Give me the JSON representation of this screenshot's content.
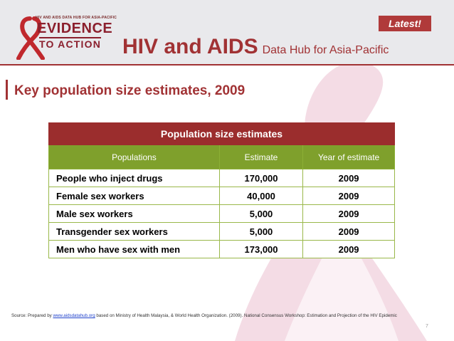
{
  "header": {
    "logo": {
      "tagline": "HIV AND AIDS DATA HUB FOR ASIA-PACIFIC",
      "line1": "EVIDENCE",
      "line2": "TO ACTION"
    },
    "badge": "Latest!",
    "title_main": "HIV and AIDS",
    "title_sub": "Data Hub for Asia-Pacific"
  },
  "page_title": "Key population size estimates, 2009",
  "table": {
    "caption": "Population size estimates",
    "columns": [
      "Populations",
      "Estimate",
      "Year of estimate"
    ],
    "rows": [
      [
        "People who inject drugs",
        "170,000",
        "2009"
      ],
      [
        "Female sex workers",
        "40,000",
        "2009"
      ],
      [
        "Male sex workers",
        "5,000",
        "2009"
      ],
      [
        "Transgender sex workers",
        "5,000",
        "2009"
      ],
      [
        "Men who have sex with men",
        "173,000",
        "2009"
      ]
    ]
  },
  "source": {
    "prefix": "Source: Prepared by ",
    "link": "www.aidsdatahub.org",
    "rest": " based on  Ministry of Health Malaysia, & World Health Organization. (2009). National Consensus Workshop: Estimation and Projection of the HIV Epidemic"
  },
  "page_number": "7",
  "colors": {
    "brand": "#a13234",
    "table_caption": "#9b2d2d",
    "table_header": "#7fa02c",
    "ribbon": "#f2d6e0"
  }
}
